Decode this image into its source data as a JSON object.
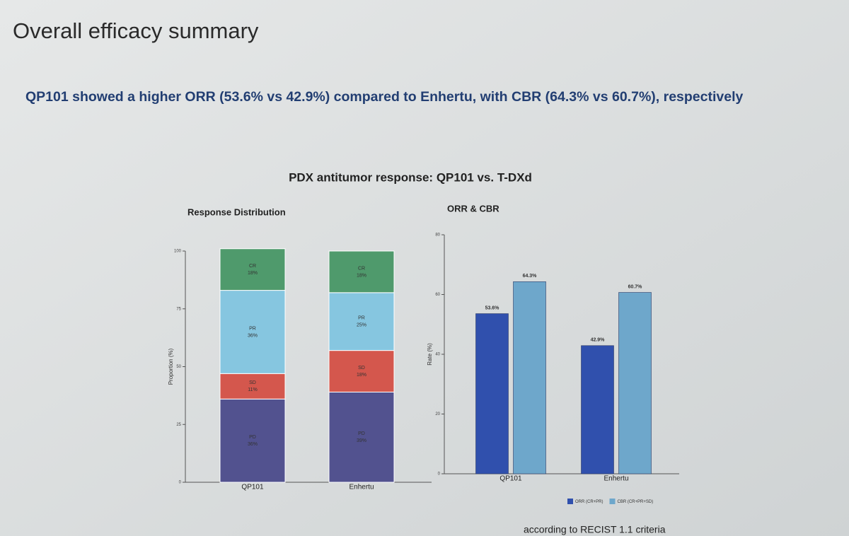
{
  "slide": {
    "title": "Overall efficacy summary",
    "subtitle": "QP101 showed a higher ORR (53.6% vs 42.9%) compared to Enhertu, with CBR (64.3% vs 60.7%), respectively",
    "figure_title": "PDX antitumor response: QP101 vs. T-DXd",
    "footnote": "according to RECIST 1.1 criteria"
  },
  "chart_data": [
    {
      "type": "bar",
      "stacked": true,
      "title": "Response Distribution",
      "ylabel": "Proportion (%)",
      "categories": [
        "QP101",
        "Enhertu"
      ],
      "series": [
        {
          "name": "PD",
          "color": "#52528f",
          "values": [
            36,
            39
          ],
          "value_labels": [
            "36%",
            "39%"
          ]
        },
        {
          "name": "SD",
          "color": "#d4574d",
          "values": [
            11,
            18
          ],
          "value_labels": [
            "11%",
            "18%"
          ]
        },
        {
          "name": "PR",
          "color": "#86c6e0",
          "values": [
            36,
            25
          ],
          "value_labels": [
            "36%",
            "25%"
          ]
        },
        {
          "name": "CR",
          "color": "#4f9a6c",
          "values": [
            18,
            18
          ],
          "value_labels": [
            "18%",
            "18%"
          ]
        }
      ],
      "ylim": [
        0,
        100
      ],
      "yticks": [
        0,
        25,
        50,
        75,
        100
      ]
    },
    {
      "type": "bar",
      "stacked": false,
      "title": "ORR & CBR",
      "ylabel": "Rate (%)",
      "categories": [
        "QP101",
        "Enhertu"
      ],
      "series": [
        {
          "name": "ORR (CR+PR)",
          "color": "#3050ad",
          "values": [
            53.6,
            42.9
          ],
          "value_labels": [
            "53.6%",
            "42.9%"
          ]
        },
        {
          "name": "CBR (CR+PR+SD)",
          "color": "#6ea7cb",
          "values": [
            64.3,
            60.7
          ],
          "value_labels": [
            "64.3%",
            "60.7%"
          ]
        }
      ],
      "ylim": [
        0,
        80
      ],
      "yticks": [
        0,
        20,
        40,
        60,
        80
      ],
      "legend": "bottom"
    }
  ]
}
